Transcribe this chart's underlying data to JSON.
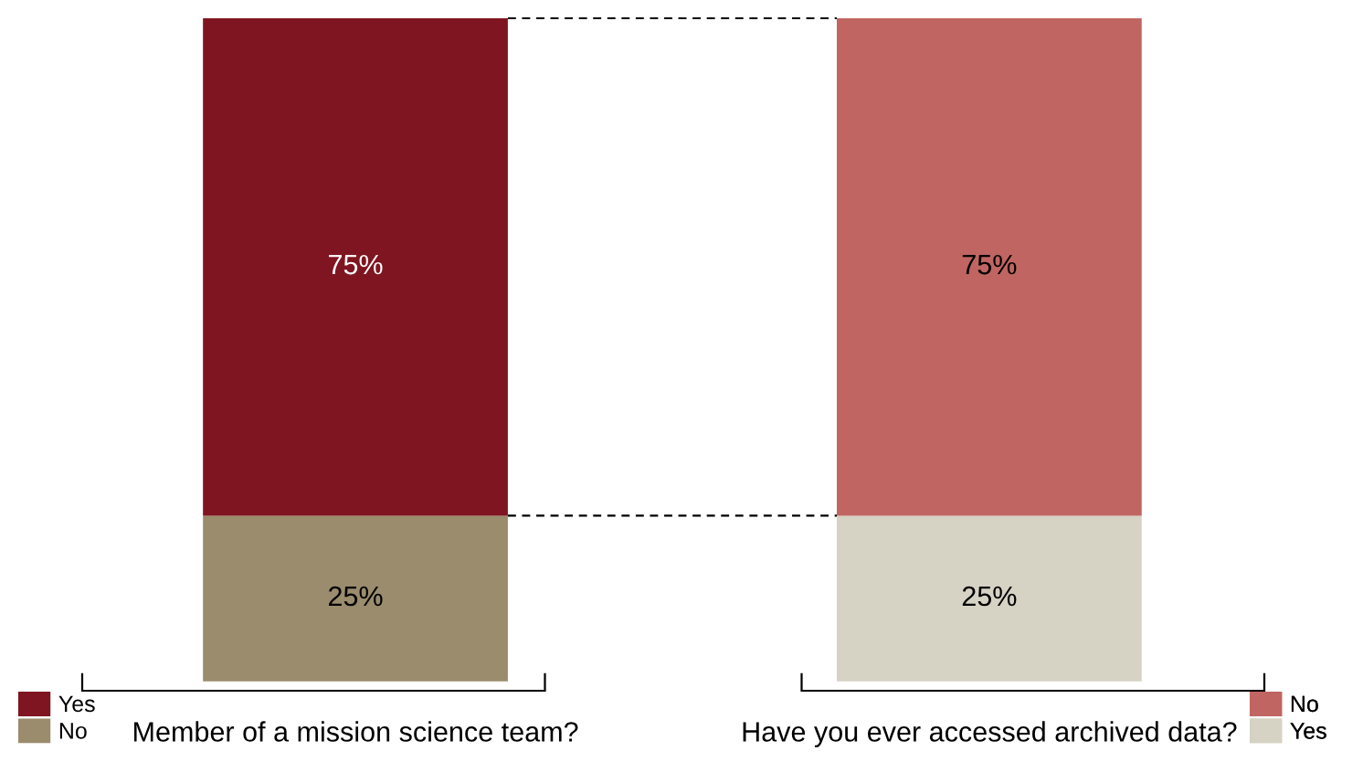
{
  "chart_data": {
    "type": "bar",
    "stacked": true,
    "categories": [
      "Member of a mission science team?",
      "Have you ever accessed archived data?"
    ],
    "legend": "bottom",
    "series": [
      {
        "name": "No",
        "color": "#9a8c6c",
        "values": [
          25,
          null
        ],
        "value_labels": [
          "25%",
          null
        ]
      },
      {
        "name": "Yes",
        "color": "#7f1520",
        "values": [
          75,
          null
        ],
        "value_labels": [
          "75%",
          null
        ]
      },
      {
        "name": "Yes",
        "color": "#d6d2c4",
        "values": [
          null,
          25
        ],
        "value_labels": [
          null,
          "25%"
        ]
      },
      {
        "name": "No",
        "color": "#c06561",
        "values": [
          null,
          75
        ],
        "value_labels": [
          null,
          "75%"
        ]
      }
    ]
  }
}
